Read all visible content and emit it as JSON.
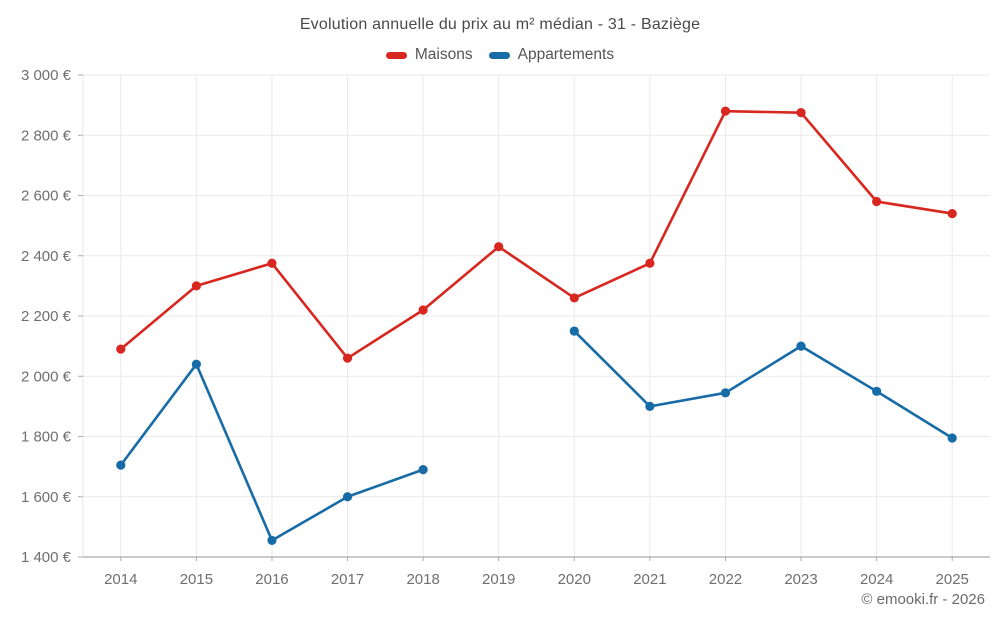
{
  "chart": {
    "title": "Evolution annuelle du prix au m² médian - 31 - Baziège",
    "copyright": "© emooki.fr - 2026"
  },
  "chart_data": {
    "type": "line",
    "title": "Evolution annuelle du prix au m² médian - 31 - Baziège",
    "categories": [
      "2014",
      "2015",
      "2016",
      "2017",
      "2018",
      "2019",
      "2020",
      "2021",
      "2022",
      "2023",
      "2024",
      "2025"
    ],
    "series": [
      {
        "name": "Maisons",
        "color": "#d7271f",
        "values": [
          2090,
          2300,
          2375,
          2060,
          2220,
          2430,
          2260,
          2375,
          2880,
          2875,
          2580,
          2540
        ]
      },
      {
        "name": "Appartements",
        "color": "#176ba6",
        "values": [
          1705,
          2040,
          1455,
          1600,
          1690,
          null,
          2150,
          1900,
          1945,
          2100,
          1950,
          1795
        ]
      }
    ],
    "xlabel": "",
    "ylabel": "",
    "ylim": [
      1400,
      3000
    ],
    "yticks": [
      1400,
      1600,
      1800,
      2000,
      2200,
      2400,
      2600,
      2800,
      3000
    ],
    "ytick_labels": [
      "1 400 €",
      "1 600 €",
      "1 800 €",
      "2 000 €",
      "2 200 €",
      "2 400 €",
      "2 600 €",
      "2 800 €",
      "3 000 €"
    ],
    "grid": true,
    "legend_position": "top"
  },
  "colors": {
    "background": "#ffffff",
    "grid": "#e9e9e9",
    "axis": "#ababab",
    "title_text": "#4a4a4a",
    "axis_text": "#6f6f6f",
    "legend_text": "#555555",
    "copyright_text": "#6b6b6b"
  }
}
